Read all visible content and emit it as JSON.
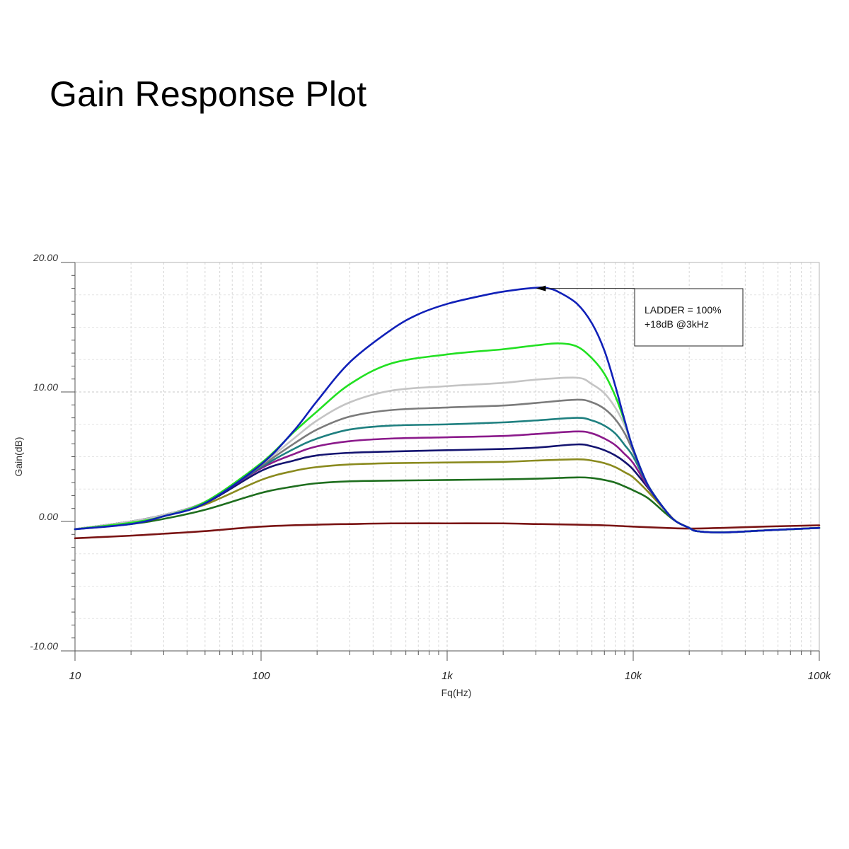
{
  "title": "Gain Response Plot",
  "chart_data": {
    "type": "line",
    "title": "Gain Response Plot",
    "xlabel": "Fq(Hz)",
    "ylabel": "Gain(dB)",
    "xscale": "log",
    "xlim": [
      10,
      100000
    ],
    "ylim": [
      -10,
      20
    ],
    "x_tick_values": [
      10,
      100,
      1000,
      10000,
      100000
    ],
    "x_tick_labels": [
      "10",
      "100",
      "1k",
      "10k",
      "100k"
    ],
    "y_tick_values": [
      -10,
      0,
      10,
      20
    ],
    "y_tick_labels": [
      "-10.00",
      "0.00",
      "10.00",
      "20.00"
    ],
    "grid": true,
    "legend": "none",
    "annotation": {
      "lines": [
        "LADDER = 100%",
        "+18dB @3kHz"
      ],
      "target": {
        "x": 3000,
        "y": 18
      }
    },
    "series": [
      {
        "color": "#1020b8",
        "points": [
          [
            10,
            -0.6
          ],
          [
            20,
            -0.2
          ],
          [
            30,
            0.4
          ],
          [
            50,
            1.4
          ],
          [
            100,
            4.4
          ],
          [
            150,
            7
          ],
          [
            200,
            9.3
          ],
          [
            300,
            12.3
          ],
          [
            500,
            14.8
          ],
          [
            700,
            16
          ],
          [
            1000,
            16.8
          ],
          [
            1500,
            17.4
          ],
          [
            2000,
            17.75
          ],
          [
            3000,
            18.05
          ],
          [
            3500,
            18.0
          ],
          [
            4000,
            17.7
          ],
          [
            5000,
            16.8
          ],
          [
            6000,
            15.3
          ],
          [
            7000,
            13.2
          ],
          [
            8000,
            10.5
          ],
          [
            9000,
            7.8
          ],
          [
            10000,
            5.6
          ],
          [
            12000,
            2.8
          ],
          [
            15000,
            0.8
          ],
          [
            17000,
            0
          ],
          [
            20000,
            -0.5
          ],
          [
            22000,
            -0.75
          ],
          [
            30000,
            -0.85
          ],
          [
            50000,
            -0.7
          ],
          [
            100000,
            -0.5
          ]
        ]
      },
      {
        "color": "#22e022",
        "points": [
          [
            10,
            -0.6
          ],
          [
            20,
            -0.1
          ],
          [
            30,
            0.4
          ],
          [
            50,
            1.5
          ],
          [
            100,
            4.5
          ],
          [
            150,
            6.9
          ],
          [
            200,
            8.5
          ],
          [
            300,
            10.6
          ],
          [
            500,
            12.2
          ],
          [
            1000,
            12.9
          ],
          [
            2000,
            13.3
          ],
          [
            3000,
            13.6
          ],
          [
            4000,
            13.75
          ],
          [
            5000,
            13.5
          ],
          [
            6000,
            12.6
          ],
          [
            7000,
            11.4
          ],
          [
            8000,
            9.7
          ],
          [
            9000,
            7.7
          ],
          [
            10000,
            5.6
          ],
          [
            12000,
            2.8
          ],
          [
            15000,
            0.8
          ],
          [
            17000,
            0
          ],
          [
            20000,
            -0.5
          ],
          [
            22000,
            -0.75
          ],
          [
            30000,
            -0.85
          ],
          [
            50000,
            -0.7
          ],
          [
            100000,
            -0.5
          ]
        ]
      },
      {
        "color": "#c4c4c4",
        "points": [
          [
            10,
            -0.6
          ],
          [
            20,
            0
          ],
          [
            30,
            0.5
          ],
          [
            50,
            1.5
          ],
          [
            100,
            4.4
          ],
          [
            150,
            6.4
          ],
          [
            200,
            7.8
          ],
          [
            300,
            9.2
          ],
          [
            500,
            10.1
          ],
          [
            1000,
            10.45
          ],
          [
            2000,
            10.7
          ],
          [
            3000,
            10.95
          ],
          [
            5000,
            11.1
          ],
          [
            6000,
            10.6
          ],
          [
            7000,
            9.9
          ],
          [
            8000,
            8.8
          ],
          [
            9000,
            7.4
          ],
          [
            10000,
            5.6
          ],
          [
            12000,
            2.8
          ],
          [
            15000,
            0.8
          ],
          [
            17000,
            0
          ],
          [
            20000,
            -0.5
          ],
          [
            22000,
            -0.75
          ],
          [
            30000,
            -0.85
          ],
          [
            50000,
            -0.7
          ],
          [
            100000,
            -0.5
          ]
        ]
      },
      {
        "color": "#7b7b7b",
        "points": [
          [
            10,
            -0.6
          ],
          [
            20,
            0
          ],
          [
            30,
            0.5
          ],
          [
            50,
            1.5
          ],
          [
            100,
            4.3
          ],
          [
            150,
            6
          ],
          [
            200,
            7.1
          ],
          [
            300,
            8.1
          ],
          [
            500,
            8.6
          ],
          [
            1000,
            8.8
          ],
          [
            2000,
            8.95
          ],
          [
            3000,
            9.15
          ],
          [
            5000,
            9.4
          ],
          [
            6000,
            9.2
          ],
          [
            7000,
            8.7
          ],
          [
            8000,
            7.9
          ],
          [
            9000,
            6.8
          ],
          [
            10000,
            5.4
          ],
          [
            12000,
            2.8
          ],
          [
            15000,
            0.8
          ],
          [
            17000,
            0
          ],
          [
            20000,
            -0.5
          ],
          [
            22000,
            -0.75
          ],
          [
            30000,
            -0.85
          ],
          [
            50000,
            -0.7
          ],
          [
            100000,
            -0.5
          ]
        ]
      },
      {
        "color": "#1f8080",
        "points": [
          [
            10,
            -0.6
          ],
          [
            20,
            0
          ],
          [
            30,
            0.5
          ],
          [
            50,
            1.5
          ],
          [
            100,
            4.2
          ],
          [
            150,
            5.6
          ],
          [
            200,
            6.4
          ],
          [
            300,
            7.1
          ],
          [
            500,
            7.4
          ],
          [
            1000,
            7.5
          ],
          [
            2000,
            7.65
          ],
          [
            3000,
            7.8
          ],
          [
            5000,
            8.0
          ],
          [
            6000,
            7.8
          ],
          [
            7000,
            7.4
          ],
          [
            8000,
            6.8
          ],
          [
            9000,
            5.9
          ],
          [
            10000,
            5
          ],
          [
            12000,
            2.8
          ],
          [
            15000,
            0.8
          ],
          [
            17000,
            0
          ],
          [
            20000,
            -0.5
          ],
          [
            22000,
            -0.75
          ],
          [
            30000,
            -0.85
          ],
          [
            50000,
            -0.7
          ],
          [
            100000,
            -0.5
          ]
        ]
      },
      {
        "color": "#8b1a8b",
        "points": [
          [
            10,
            -0.6
          ],
          [
            20,
            0
          ],
          [
            30,
            0.5
          ],
          [
            50,
            1.5
          ],
          [
            100,
            4.1
          ],
          [
            150,
            5.2
          ],
          [
            200,
            5.8
          ],
          [
            300,
            6.2
          ],
          [
            500,
            6.4
          ],
          [
            1000,
            6.5
          ],
          [
            2000,
            6.6
          ],
          [
            3000,
            6.75
          ],
          [
            5000,
            6.95
          ],
          [
            6000,
            6.8
          ],
          [
            7000,
            6.4
          ],
          [
            8000,
            5.9
          ],
          [
            9000,
            5.2
          ],
          [
            10000,
            4.5
          ],
          [
            12000,
            2.7
          ],
          [
            15000,
            0.8
          ],
          [
            17000,
            0
          ],
          [
            20000,
            -0.5
          ],
          [
            22000,
            -0.75
          ],
          [
            30000,
            -0.85
          ],
          [
            50000,
            -0.7
          ],
          [
            100000,
            -0.5
          ]
        ]
      },
      {
        "color": "#141470",
        "points": [
          [
            10,
            -0.6
          ],
          [
            20,
            0
          ],
          [
            30,
            0.5
          ],
          [
            50,
            1.4
          ],
          [
            100,
            3.9
          ],
          [
            150,
            4.7
          ],
          [
            200,
            5.1
          ],
          [
            300,
            5.3
          ],
          [
            500,
            5.4
          ],
          [
            1000,
            5.5
          ],
          [
            2000,
            5.6
          ],
          [
            3000,
            5.7
          ],
          [
            5000,
            5.95
          ],
          [
            6000,
            5.8
          ],
          [
            7000,
            5.5
          ],
          [
            8000,
            5.1
          ],
          [
            9000,
            4.6
          ],
          [
            10000,
            4
          ],
          [
            12000,
            2.6
          ],
          [
            15000,
            0.8
          ],
          [
            17000,
            0
          ],
          [
            20000,
            -0.5
          ],
          [
            22000,
            -0.75
          ],
          [
            30000,
            -0.85
          ],
          [
            50000,
            -0.7
          ],
          [
            100000,
            -0.5
          ]
        ]
      },
      {
        "color": "#8a8a1e",
        "points": [
          [
            10,
            -0.6
          ],
          [
            20,
            -0.1
          ],
          [
            30,
            0.4
          ],
          [
            50,
            1.3
          ],
          [
            100,
            3.2
          ],
          [
            150,
            3.9
          ],
          [
            200,
            4.2
          ],
          [
            300,
            4.4
          ],
          [
            500,
            4.5
          ],
          [
            1000,
            4.55
          ],
          [
            2000,
            4.6
          ],
          [
            3000,
            4.7
          ],
          [
            5000,
            4.8
          ],
          [
            6000,
            4.7
          ],
          [
            7000,
            4.5
          ],
          [
            8000,
            4.2
          ],
          [
            9000,
            3.8
          ],
          [
            10000,
            3.4
          ],
          [
            12000,
            2.3
          ],
          [
            15000,
            0.8
          ],
          [
            17000,
            0
          ],
          [
            20000,
            -0.5
          ],
          [
            22000,
            -0.75
          ],
          [
            30000,
            -0.85
          ],
          [
            50000,
            -0.7
          ],
          [
            100000,
            -0.5
          ]
        ]
      },
      {
        "color": "#1e6e1e",
        "points": [
          [
            10,
            -0.6
          ],
          [
            20,
            -0.2
          ],
          [
            30,
            0.2
          ],
          [
            50,
            0.9
          ],
          [
            100,
            2.2
          ],
          [
            150,
            2.7
          ],
          [
            200,
            2.95
          ],
          [
            300,
            3.1
          ],
          [
            500,
            3.15
          ],
          [
            1000,
            3.2
          ],
          [
            2000,
            3.25
          ],
          [
            3000,
            3.3
          ],
          [
            5000,
            3.4
          ],
          [
            6000,
            3.35
          ],
          [
            7000,
            3.2
          ],
          [
            8000,
            3
          ],
          [
            9000,
            2.7
          ],
          [
            10000,
            2.4
          ],
          [
            12000,
            1.8
          ],
          [
            15000,
            0.6
          ],
          [
            17000,
            0
          ],
          [
            20000,
            -0.5
          ],
          [
            22000,
            -0.75
          ],
          [
            30000,
            -0.85
          ],
          [
            50000,
            -0.7
          ],
          [
            100000,
            -0.5
          ]
        ]
      },
      {
        "color": "#7a1414",
        "points": [
          [
            10,
            -1.3
          ],
          [
            20,
            -1.1
          ],
          [
            30,
            -0.95
          ],
          [
            50,
            -0.75
          ],
          [
            100,
            -0.4
          ],
          [
            200,
            -0.25
          ],
          [
            300,
            -0.2
          ],
          [
            500,
            -0.15
          ],
          [
            1000,
            -0.15
          ],
          [
            2000,
            -0.15
          ],
          [
            3000,
            -0.2
          ],
          [
            5000,
            -0.25
          ],
          [
            7000,
            -0.3
          ],
          [
            10000,
            -0.4
          ],
          [
            15000,
            -0.5
          ],
          [
            20000,
            -0.55
          ],
          [
            30000,
            -0.5
          ],
          [
            50000,
            -0.4
          ],
          [
            100000,
            -0.3
          ]
        ]
      }
    ]
  }
}
